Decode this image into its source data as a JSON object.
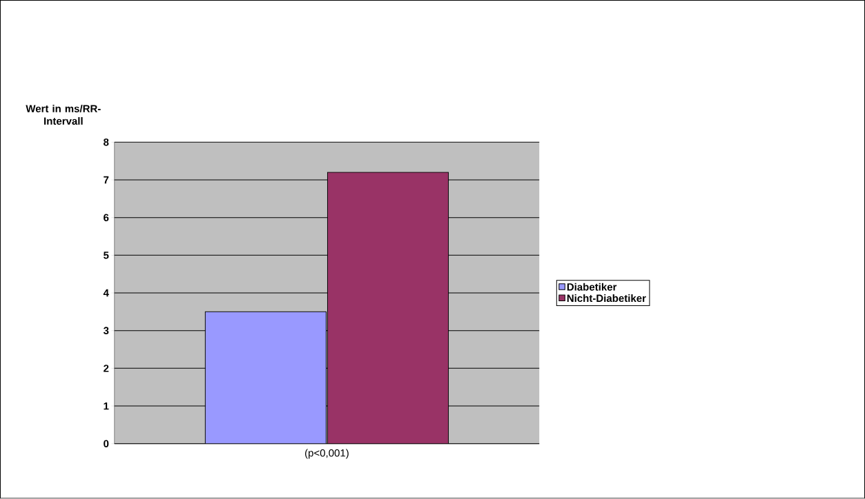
{
  "chart_data": {
    "type": "bar",
    "ylabel": "Wert in ms/RR-Intervall",
    "categories": [
      "(p<0,001)"
    ],
    "series": [
      {
        "name": "Diabetiker",
        "color": "#9999ff",
        "values": [
          3.5
        ]
      },
      {
        "name": "Nicht-Diabetiker",
        "color": "#993366",
        "values": [
          7.2
        ]
      }
    ],
    "ylim": [
      0,
      8
    ],
    "yticks": [
      0,
      1,
      2,
      3,
      4,
      5,
      6,
      7,
      8
    ],
    "grid": "y",
    "legend": "right"
  }
}
